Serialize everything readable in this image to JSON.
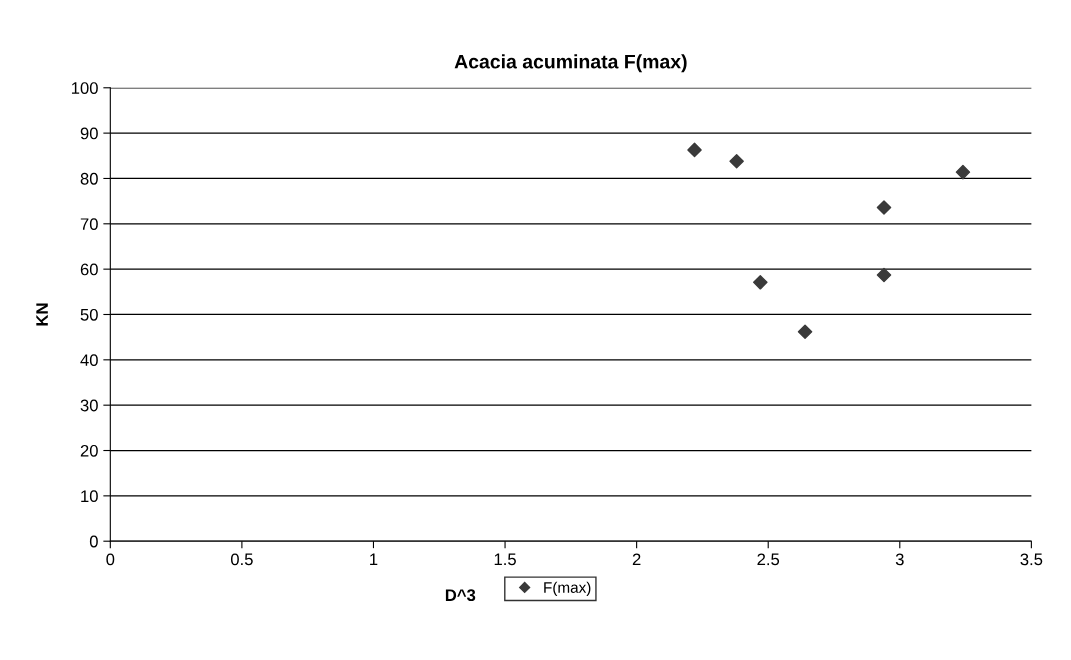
{
  "chart_data": {
    "type": "scatter",
    "title": "Acacia acuminata F(max)",
    "xlabel": "D^3",
    "ylabel": "KN",
    "series": [
      {
        "name": "F(max)",
        "color": "#3a3a3a",
        "x": [
          2.22,
          2.38,
          2.47,
          2.64,
          2.94,
          2.94,
          3.24
        ],
        "values": [
          86.3,
          83.8,
          57.1,
          46.2,
          73.6,
          58.7,
          81.4
        ]
      }
    ],
    "xlim": [
      0,
      3.5
    ],
    "xticks": [
      0,
      0.5,
      1,
      1.5,
      2,
      2.5,
      3,
      3.5
    ],
    "ylim": [
      0,
      100
    ],
    "yticks": [
      0,
      10,
      20,
      30,
      40,
      50,
      60,
      70,
      80,
      90,
      100
    ],
    "grid": "y",
    "legend": "bottom",
    "marker": "diamond"
  }
}
